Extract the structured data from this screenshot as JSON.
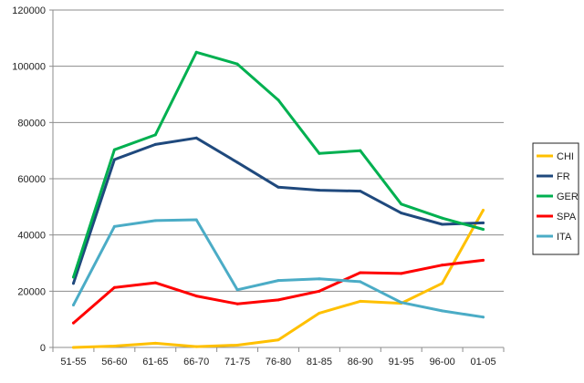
{
  "chart_data": {
    "type": "line",
    "title": "",
    "xlabel": "",
    "ylabel": "",
    "categories": [
      "51-55",
      "56-60",
      "61-65",
      "66-70",
      "71-75",
      "76-80",
      "81-85",
      "86-90",
      "91-95",
      "96-00",
      "01-05"
    ],
    "ylim": [
      0,
      120000
    ],
    "yticks": [
      0,
      20000,
      40000,
      60000,
      80000,
      100000,
      120000
    ],
    "grid": "horizontal",
    "legend_position": "right",
    "series": [
      {
        "name": "CHI",
        "color": "#FFC000",
        "values": [
          0,
          500,
          1500,
          300,
          800,
          2700,
          12200,
          16400,
          15700,
          22800,
          48800
        ]
      },
      {
        "name": "FR",
        "color": "#1F497D",
        "values": [
          22800,
          66800,
          72200,
          74500,
          65800,
          57000,
          55900,
          55600,
          47800,
          43800,
          44300
        ]
      },
      {
        "name": "GER",
        "color": "#00B050",
        "values": [
          25000,
          70300,
          75600,
          105000,
          100800,
          88000,
          69000,
          70000,
          51000,
          46000,
          42000
        ]
      },
      {
        "name": "SPA",
        "color": "#FF0000",
        "values": [
          8700,
          21300,
          23000,
          18300,
          15500,
          16900,
          20000,
          26600,
          26300,
          29300,
          31000
        ]
      },
      {
        "name": "ITA",
        "color": "#4BACC6",
        "values": [
          15100,
          43000,
          45100,
          45400,
          20500,
          23800,
          24400,
          23400,
          16000,
          13000,
          10800
        ]
      }
    ]
  }
}
